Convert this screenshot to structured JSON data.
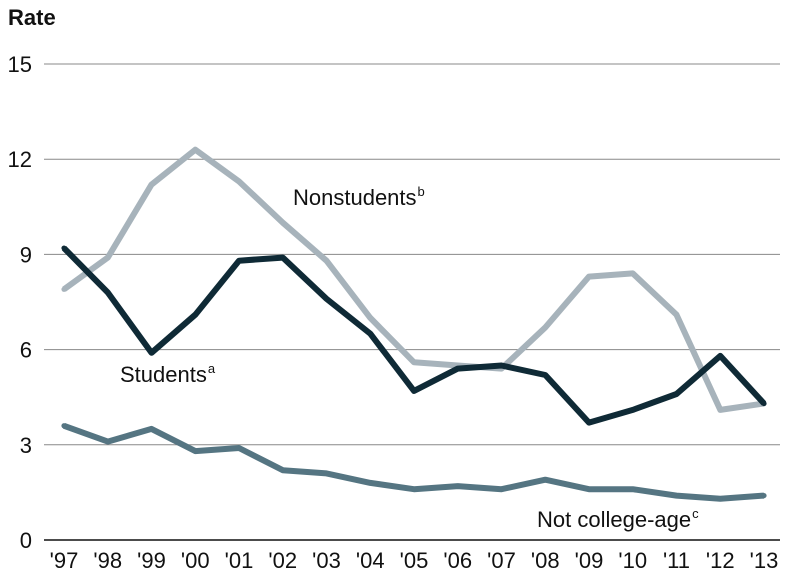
{
  "chart_data": {
    "type": "line",
    "ylabel": "Rate",
    "ylim": [
      0,
      15
    ],
    "yticks": [
      0,
      3,
      6,
      9,
      12,
      15
    ],
    "ytick_labels": [
      "0",
      "3",
      "6",
      "9",
      "12",
      "15"
    ],
    "categories": [
      "'97",
      "'98",
      "'99",
      "'00",
      "'01",
      "'02",
      "'03",
      "'04",
      "'05",
      "'06",
      "'07",
      "'08",
      "'09",
      "'10",
      "'11",
      "'12",
      "'13"
    ],
    "grid": true,
    "legend": "none",
    "series": [
      {
        "name": "Nonstudents",
        "superscript": "b",
        "color": "#a7b3bb",
        "values": [
          7.9,
          8.9,
          11.2,
          12.3,
          11.3,
          10.0,
          8.8,
          7.0,
          5.6,
          5.5,
          5.4,
          6.7,
          8.3,
          8.4,
          7.1,
          4.1,
          4.3
        ]
      },
      {
        "name": "Students",
        "superscript": "a",
        "color": "#0f2a36",
        "values": [
          9.2,
          7.8,
          5.9,
          7.1,
          8.8,
          8.9,
          7.6,
          6.5,
          4.7,
          5.4,
          5.5,
          5.2,
          3.7,
          4.1,
          4.6,
          5.8,
          4.3
        ]
      },
      {
        "name": "Not college-age",
        "superscript": "c",
        "color": "#557582",
        "values": [
          3.6,
          3.1,
          3.5,
          2.8,
          2.9,
          2.2,
          2.1,
          1.8,
          1.6,
          1.7,
          1.6,
          1.9,
          1.6,
          1.6,
          1.4,
          1.3,
          1.4
        ]
      }
    ]
  }
}
